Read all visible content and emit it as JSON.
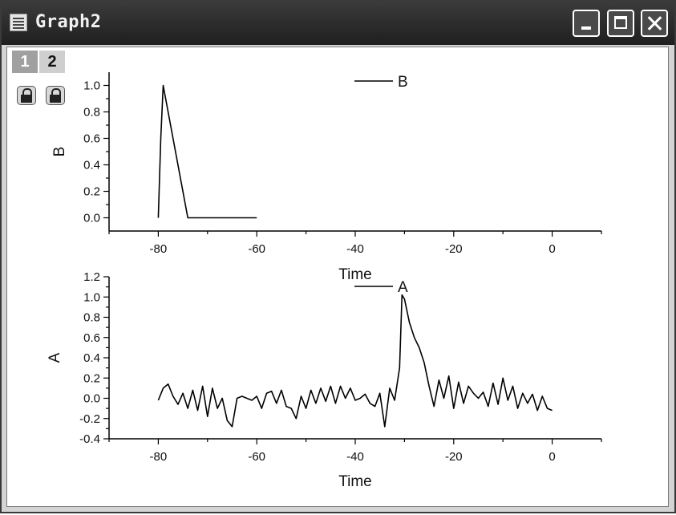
{
  "window": {
    "title": "Graph2",
    "layer_tabs": [
      "1",
      "2"
    ]
  },
  "icons": {
    "app": "graph-window-icon",
    "minimize": "minimize-icon",
    "maximize": "maximize-icon",
    "close": "close-icon",
    "lock": "padlock-icon"
  },
  "chart_data": [
    {
      "type": "line",
      "title": "",
      "xlabel": "Time",
      "ylabel": "B",
      "xlim": [
        -90,
        10
      ],
      "ylim": [
        -0.1,
        1.1
      ],
      "xticks": [
        -80,
        -60,
        -40,
        -20,
        0
      ],
      "yticks": [
        "0.0",
        "0.2",
        "0.4",
        "0.6",
        "0.8",
        "1.0"
      ],
      "legend": "top-center",
      "series": [
        {
          "name": "B",
          "x": [
            -80,
            -79.5,
            -79,
            -74,
            -60
          ],
          "y": [
            0,
            0.6,
            1.0,
            0,
            0
          ]
        }
      ]
    },
    {
      "type": "line",
      "title": "",
      "xlabel": "Time",
      "ylabel": "A",
      "xlim": [
        -90,
        10
      ],
      "ylim": [
        -0.4,
        1.2
      ],
      "xticks": [
        -80,
        -60,
        -40,
        -20,
        0
      ],
      "yticks": [
        "-0.4",
        "-0.2",
        "0.0",
        "0.2",
        "0.4",
        "0.6",
        "0.8",
        "1.0",
        "1.2"
      ],
      "legend": "top-center",
      "series": [
        {
          "name": "A",
          "x": [
            -80,
            -79,
            -78,
            -77,
            -76,
            -75,
            -74,
            -73,
            -72,
            -71,
            -70,
            -69,
            -68,
            -67,
            -66,
            -65,
            -64,
            -63,
            -62,
            -61,
            -60,
            -59,
            -58,
            -57,
            -56,
            -55,
            -54,
            -53,
            -52,
            -51,
            -50,
            -49,
            -48,
            -47,
            -46,
            -45,
            -44,
            -43,
            -42,
            -41,
            -40,
            -39,
            -38,
            -37,
            -36,
            -35,
            -34,
            -33,
            -32,
            -31,
            -30.5,
            -30,
            -29,
            -28,
            -27,
            -26,
            -25,
            -24,
            -23,
            -22,
            -21,
            -20,
            -19,
            -18,
            -17,
            -16,
            -15,
            -14,
            -13,
            -12,
            -11,
            -10,
            -9,
            -8,
            -7,
            -6,
            -5,
            -4,
            -3,
            -2,
            -1,
            0
          ],
          "y": [
            -0.02,
            0.1,
            0.14,
            0.02,
            -0.06,
            0.05,
            -0.1,
            0.08,
            -0.12,
            0.12,
            -0.18,
            0.1,
            -0.1,
            0.0,
            -0.22,
            -0.28,
            0.0,
            0.02,
            0.0,
            -0.02,
            0.02,
            -0.1,
            0.05,
            0.07,
            -0.05,
            0.08,
            -0.08,
            -0.1,
            -0.2,
            0.02,
            -0.1,
            0.08,
            -0.05,
            0.1,
            -0.03,
            0.12,
            -0.05,
            0.12,
            0.0,
            0.1,
            -0.02,
            0.0,
            0.04,
            -0.05,
            -0.08,
            0.05,
            -0.28,
            0.1,
            -0.02,
            0.3,
            1.02,
            0.98,
            0.75,
            0.6,
            0.5,
            0.35,
            0.12,
            -0.08,
            0.18,
            0.0,
            0.22,
            -0.1,
            0.16,
            -0.05,
            0.12,
            0.05,
            0.0,
            0.06,
            -0.08,
            0.15,
            -0.06,
            0.2,
            -0.02,
            0.12,
            -0.1,
            0.05,
            -0.05,
            0.04,
            -0.12,
            0.02,
            -0.1,
            -0.12
          ]
        }
      ]
    }
  ]
}
